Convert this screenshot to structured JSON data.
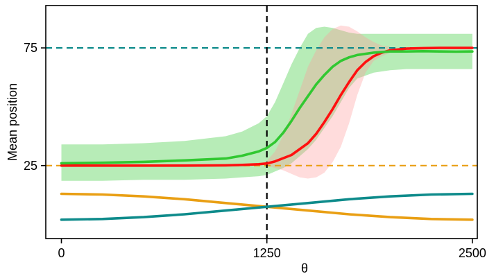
{
  "chart_data": {
    "type": "line",
    "xlabel": "θ",
    "ylabel": "Mean position",
    "xlim": [
      -95,
      2530
    ],
    "ylim": [
      -6,
      93
    ],
    "xticks": [
      0,
      1250,
      2500
    ],
    "xtick_labels": [
      "0",
      "1250",
      "2500"
    ],
    "yticks": [
      25,
      75
    ],
    "ytick_labels": [
      "25",
      "75"
    ],
    "grid": false,
    "legend": "none",
    "reference_lines": [
      {
        "orientation": "horizontal",
        "value": 75,
        "style": "dashed",
        "color": "#0e8b8b"
      },
      {
        "orientation": "horizontal",
        "value": 25,
        "style": "dashed",
        "color": "#e99f14"
      },
      {
        "orientation": "vertical",
        "value": 1250,
        "style": "dashed",
        "color": "#000000"
      }
    ],
    "series": [
      {
        "color": "#e99f14",
        "x": [
          0,
          250,
          500,
          750,
          1000,
          1250,
          1500,
          1750,
          2000,
          2250,
          2500
        ],
        "y": [
          13.0,
          12.7,
          11.9,
          10.7,
          9.1,
          7.5,
          5.9,
          4.3,
          3.1,
          2.3,
          2.0
        ]
      },
      {
        "color": "#0e8b8b",
        "x": [
          0,
          250,
          500,
          750,
          1000,
          1250,
          1500,
          1750,
          2000,
          2250,
          2500
        ],
        "y": [
          2.0,
          2.3,
          3.1,
          4.3,
          5.9,
          7.5,
          9.1,
          10.7,
          11.9,
          12.7,
          13.0
        ]
      },
      {
        "color": "#ff1010",
        "x": [
          0,
          250,
          500,
          750,
          1000,
          1100,
          1200,
          1250,
          1300,
          1400,
          1500,
          1550,
          1600,
          1650,
          1700,
          1750,
          1800,
          1850,
          1900,
          1950,
          2000,
          2100,
          2200,
          2300,
          2400,
          2500
        ],
        "y": [
          25.0,
          25.0,
          25.0,
          25.0,
          25.1,
          25.3,
          25.6,
          25.9,
          26.8,
          29.5,
          34.5,
          38.5,
          43.5,
          49.0,
          55.0,
          60.5,
          65.5,
          69.0,
          71.5,
          73.0,
          74.0,
          74.7,
          74.9,
          75.0,
          75.0,
          75.0
        ]
      },
      {
        "color": "#31c831",
        "x": [
          0,
          250,
          500,
          750,
          1000,
          1100,
          1200,
          1250,
          1300,
          1350,
          1400,
          1450,
          1500,
          1550,
          1600,
          1650,
          1700,
          1750,
          1800,
          1900,
          2000,
          2100,
          2200,
          2300,
          2400,
          2500
        ],
        "y": [
          26.0,
          26.2,
          26.6,
          27.2,
          28.0,
          29.2,
          31.0,
          32.5,
          35.0,
          39.0,
          44.0,
          49.5,
          54.5,
          59.5,
          63.5,
          67.0,
          69.5,
          71.0,
          72.0,
          73.0,
          73.5,
          73.5,
          73.6,
          73.5,
          73.4,
          73.5
        ]
      }
    ],
    "bands": [
      {
        "color": "#31c831",
        "x": [
          0,
          250,
          500,
          750,
          1000,
          1100,
          1200,
          1250,
          1300,
          1350,
          1400,
          1450,
          1500,
          1550,
          1600,
          1650,
          1700,
          1750,
          1800,
          1900,
          2000,
          2100,
          2200,
          2300,
          2400,
          2500
        ],
        "lower": [
          18.5,
          18.5,
          19.0,
          19.0,
          19.5,
          20.0,
          20.5,
          21.0,
          22.5,
          24.0,
          26.0,
          29.0,
          32.0,
          36.0,
          41.0,
          46.0,
          52.0,
          58.0,
          62.0,
          64.5,
          65.5,
          66.0,
          66.0,
          66.0,
          66.0,
          66.0
        ],
        "upper": [
          34.0,
          34.0,
          34.5,
          35.5,
          37.5,
          39.5,
          43.0,
          46.0,
          52.0,
          60.0,
          68.0,
          75.0,
          81.0,
          83.5,
          84.0,
          83.5,
          82.5,
          81.5,
          81.0,
          81.0,
          81.0,
          81.0,
          81.0,
          81.0,
          81.0,
          81.0
        ]
      },
      {
        "color": "#ff9c9c",
        "x": [
          1250,
          1300,
          1350,
          1400,
          1450,
          1500,
          1550,
          1600,
          1650,
          1700,
          1750,
          1800,
          1850,
          1900,
          1950,
          2000
        ],
        "lower": [
          25.0,
          24.0,
          23.0,
          21.5,
          20.0,
          19.5,
          20.0,
          22.0,
          26.5,
          33.0,
          43.0,
          55.0,
          64.5,
          69.5,
          71.5,
          73.0
        ],
        "upper": [
          27.0,
          31.0,
          38.0,
          47.0,
          57.0,
          67.0,
          74.0,
          79.5,
          83.0,
          84.5,
          84.0,
          82.0,
          79.5,
          77.5,
          76.0,
          75.5
        ]
      }
    ]
  }
}
